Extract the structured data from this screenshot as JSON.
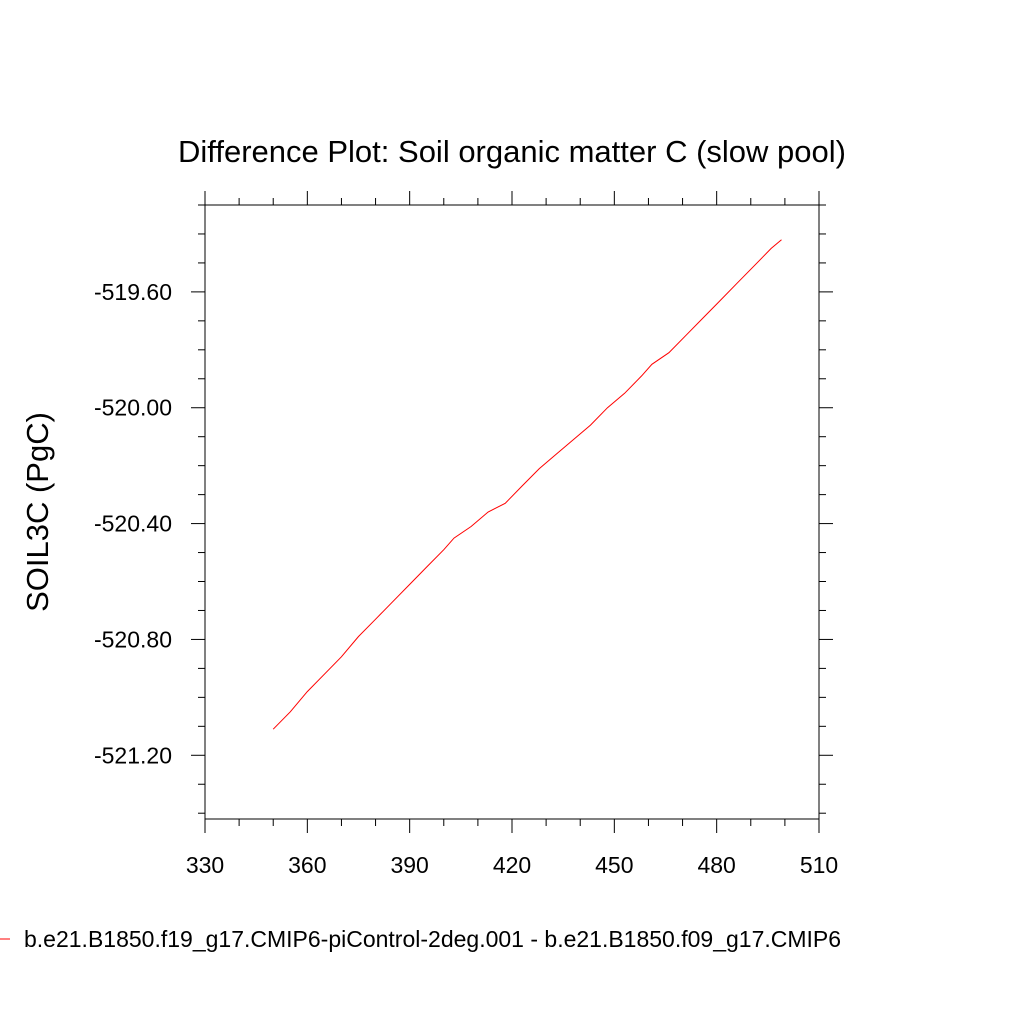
{
  "chart_data": {
    "type": "line",
    "title": "Difference Plot: Soil organic matter C (slow pool)",
    "xlabel": "",
    "ylabel": "SOIL3C  (PgC)",
    "xlim": [
      330,
      510
    ],
    "ylim": [
      -521.42,
      -519.3
    ],
    "x_ticks": [
      "330",
      "360",
      "390",
      "420",
      "450",
      "480",
      "510"
    ],
    "y_ticks": [
      "-519.60",
      "-520.00",
      "-520.40",
      "-520.80",
      "-521.20"
    ],
    "grid": false,
    "legend": "bottom",
    "series": [
      {
        "name": "b.e21.B1850.f19_g17.CMIP6-piControl-2deg.001 - b.e21.B1850.f09_g17.CMIP6",
        "color": "#ff0000",
        "x": [
          350,
          355,
          360,
          365,
          370,
          375,
          380,
          385,
          390,
          395,
          400,
          403,
          408,
          413,
          418,
          423,
          428,
          433,
          438,
          443,
          448,
          453,
          458,
          461,
          466,
          471,
          476,
          481,
          486,
          491,
          496,
          499
        ],
        "y": [
          -521.11,
          -521.05,
          -520.98,
          -520.92,
          -520.86,
          -520.79,
          -520.73,
          -520.67,
          -520.61,
          -520.55,
          -520.49,
          -520.45,
          -520.41,
          -520.36,
          -520.33,
          -520.27,
          -520.21,
          -520.16,
          -520.11,
          -520.06,
          -520.0,
          -519.95,
          -519.89,
          -519.85,
          -519.81,
          -519.75,
          -519.69,
          -519.63,
          -519.57,
          -519.51,
          -519.45,
          -519.42
        ]
      }
    ]
  }
}
